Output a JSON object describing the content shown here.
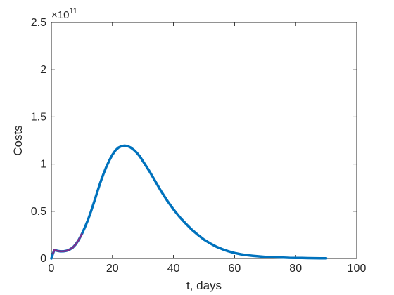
{
  "chart_data": {
    "type": "line",
    "title": "",
    "xlabel": "t, days",
    "ylabel": "Costs",
    "xlim": [
      0,
      100
    ],
    "ylim": [
      0,
      2.5
    ],
    "y_multiplier": {
      "base": "×10",
      "exponent": "11"
    },
    "xticks": [
      "0",
      "20",
      "40",
      "60",
      "80",
      "100"
    ],
    "yticks": [
      "0",
      "0.5",
      "1",
      "1.5",
      "2",
      "2.5"
    ],
    "grid": false,
    "legend": "none",
    "colors": {
      "series_main": "#0072BD",
      "series_overlay": "#7E2F8E",
      "axis": "#262626"
    },
    "series": [
      {
        "color": "#0072BD",
        "x": [
          0,
          0.5,
          1,
          1.5,
          2,
          3,
          4,
          5,
          6,
          7,
          8,
          9,
          10,
          11,
          12,
          13,
          14,
          15,
          16,
          17,
          18,
          19,
          20,
          21,
          22,
          23,
          24,
          25,
          26,
          27,
          28,
          29,
          30,
          32,
          34,
          36,
          38,
          40,
          42,
          44,
          46,
          48,
          50,
          52,
          54,
          56,
          58,
          60,
          62,
          64,
          66,
          68,
          70,
          72,
          74,
          76,
          78,
          80,
          82,
          84,
          86,
          88,
          90
        ],
        "y": [
          0.0,
          0.05,
          0.09,
          0.085,
          0.08,
          0.075,
          0.076,
          0.082,
          0.095,
          0.115,
          0.15,
          0.2,
          0.26,
          0.33,
          0.41,
          0.5,
          0.6,
          0.7,
          0.8,
          0.89,
          0.97,
          1.04,
          1.1,
          1.145,
          1.175,
          1.19,
          1.195,
          1.19,
          1.175,
          1.15,
          1.12,
          1.08,
          1.03,
          0.93,
          0.82,
          0.71,
          0.61,
          0.52,
          0.44,
          0.37,
          0.305,
          0.25,
          0.2,
          0.16,
          0.125,
          0.098,
          0.076,
          0.058,
          0.045,
          0.035,
          0.028,
          0.022,
          0.017,
          0.014,
          0.011,
          0.009,
          0.007,
          0.006,
          0.005,
          0.004,
          0.003,
          0.0025,
          0.002
        ]
      },
      {
        "color": "#7E2F8E",
        "x": [
          0.5,
          1,
          1.5,
          2,
          3,
          4,
          5,
          6,
          7,
          8,
          9,
          10
        ],
        "y": [
          0.05,
          0.09,
          0.085,
          0.08,
          0.075,
          0.076,
          0.082,
          0.095,
          0.115,
          0.15,
          0.2,
          0.26
        ]
      }
    ]
  }
}
